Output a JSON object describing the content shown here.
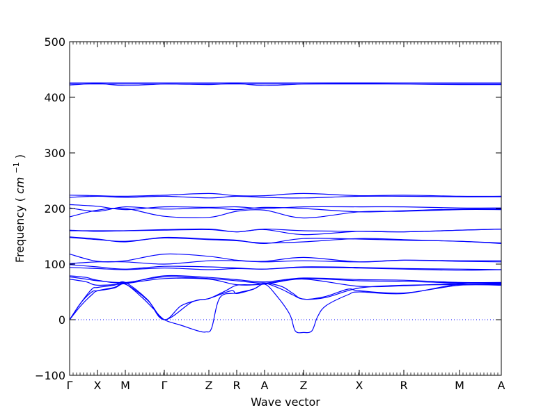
{
  "chart_data": {
    "type": "line",
    "title": "",
    "xlabel": "Wave vector",
    "ylabel": "Frequency",
    "ylabel_unit": "cm",
    "ylabel_unit_exp": "−1",
    "ylim": [
      -100,
      500
    ],
    "y_ticks": [
      -100,
      0,
      100,
      200,
      300,
      400,
      500
    ],
    "x_ticks": [
      {
        "label": "Γ",
        "x": 0
      },
      {
        "label": "X",
        "x": 0.5
      },
      {
        "label": "M",
        "x": 1.0
      },
      {
        "label": "Γ",
        "x": 1.7
      },
      {
        "label": "Z",
        "x": 2.5
      },
      {
        "label": "R",
        "x": 3.0
      },
      {
        "label": "A",
        "x": 3.5
      },
      {
        "label": "Z",
        "x": 4.2
      },
      {
        "label": "X",
        "x": 5.2
      },
      {
        "label": "R",
        "x": 6.0
      },
      {
        "label": "M",
        "x": 7.0
      },
      {
        "label": "A",
        "x": 7.75
      }
    ],
    "xlim": [
      0,
      7.75
    ],
    "zero_line": 0,
    "line_color": "#0000ff",
    "series": [
      {
        "x": [
          0,
          7.75
        ],
        "y": [
          426,
          426
        ]
      },
      {
        "x": [
          0,
          7.75
        ],
        "y": [
          424,
          424
        ]
      },
      {
        "x": [
          0,
          0.5,
          1.0,
          1.7,
          2.5,
          3.0,
          3.5,
          4.2,
          5.2,
          6.0,
          7.0,
          7.75
        ],
        "y": [
          422,
          425,
          421,
          424,
          423,
          425,
          421,
          424,
          425,
          424,
          423,
          423
        ]
      },
      {
        "x": [
          0,
          0.5,
          1.0,
          1.7,
          2.5,
          3.0,
          3.5,
          4.2,
          5.2,
          6.0,
          7.0,
          7.75
        ],
        "y": [
          224,
          223,
          222,
          224,
          227,
          223,
          223,
          227,
          223,
          224,
          222,
          222
        ]
      },
      {
        "x": [
          0,
          0.5,
          1.0,
          1.7,
          2.5,
          3.0,
          3.5,
          4.2,
          5.2,
          6.0,
          7.0,
          7.75
        ],
        "y": [
          220,
          222,
          220,
          222,
          219,
          222,
          220,
          219,
          222,
          222,
          221,
          221
        ]
      },
      {
        "x": [
          0,
          0.5,
          1.0,
          1.7,
          2.5,
          3.0,
          3.5,
          4.2,
          5.2,
          6.0,
          7.0,
          7.75
        ],
        "y": [
          207,
          204,
          198,
          203,
          202,
          203,
          200,
          203,
          203,
          203,
          201,
          201
        ]
      },
      {
        "x": [
          0,
          0.5,
          1.0,
          1.7,
          2.5,
          3.0,
          3.5,
          4.2,
          5.2,
          6.0,
          7.0,
          7.75
        ],
        "y": [
          201,
          195,
          203,
          199,
          201,
          198,
          202,
          200,
          194,
          196,
          199,
          199
        ]
      },
      {
        "x": [
          0,
          0.5,
          1.0,
          1.7,
          2.5,
          3.0,
          3.5,
          4.2,
          5.2,
          6.0,
          7.0,
          7.75
        ],
        "y": [
          185,
          197,
          200,
          186,
          184,
          195,
          197,
          183,
          194,
          195,
          198,
          198
        ]
      },
      {
        "x": [
          0,
          0.5,
          1.0,
          1.7,
          2.5,
          3.0,
          3.5,
          4.2,
          5.2,
          6.0,
          7.0,
          7.75
        ],
        "y": [
          161,
          159,
          160,
          162,
          163,
          158,
          163,
          160,
          159,
          158,
          161,
          163
        ]
      },
      {
        "x": [
          0,
          0.5,
          1.0,
          1.7,
          2.5,
          3.0,
          3.5,
          4.2,
          5.2,
          6.0,
          7.0,
          7.75
        ],
        "y": [
          160,
          160,
          160,
          161,
          162,
          158,
          162,
          153,
          159,
          158,
          161,
          163
        ]
      },
      {
        "x": [
          0,
          0.5,
          1.0,
          1.7,
          2.5,
          3.0,
          3.5,
          4.2,
          5.2,
          6.0,
          7.0,
          7.75
        ],
        "y": [
          149,
          145,
          140,
          148,
          145,
          143,
          137,
          146,
          145,
          143,
          141,
          137
        ]
      },
      {
        "x": [
          0,
          0.5,
          1.0,
          1.7,
          2.5,
          3.0,
          3.5,
          4.2,
          5.2,
          6.0,
          7.0,
          7.75
        ],
        "y": [
          148,
          144,
          141,
          147,
          144,
          142,
          138,
          140,
          146,
          144,
          141,
          138
        ]
      },
      {
        "x": [
          0,
          0.5,
          1.0,
          1.7,
          2.5,
          3.0,
          3.5,
          4.2,
          5.2,
          6.0,
          7.0,
          7.75
        ],
        "y": [
          118,
          105,
          106,
          118,
          114,
          107,
          105,
          112,
          104,
          107,
          106,
          106
        ]
      },
      {
        "x": [
          0,
          0.5,
          1.0,
          1.7,
          2.5,
          3.0,
          3.5,
          4.2,
          5.2,
          6.0,
          7.0,
          7.75
        ],
        "y": [
          101,
          104,
          104,
          100,
          106,
          106,
          104,
          106,
          104,
          107,
          105,
          104
        ]
      },
      {
        "x": [
          0,
          0.5,
          1.0,
          1.7,
          2.5,
          3.0,
          3.5,
          4.2,
          5.2,
          6.0,
          7.0,
          7.75
        ],
        "y": [
          99,
          95,
          91,
          96,
          95,
          93,
          91,
          95,
          94,
          92,
          91,
          90
        ]
      },
      {
        "x": [
          0,
          0.5,
          1.0,
          1.7,
          2.5,
          3.0,
          3.5,
          4.2,
          5.2,
          6.0,
          7.0,
          7.75
        ],
        "y": [
          94,
          92,
          90,
          93,
          90,
          92,
          91,
          94,
          93,
          91,
          89,
          90
        ]
      },
      {
        "x": [
          0,
          0.3,
          0.5,
          1.0,
          1.7,
          2.5,
          3.0,
          3.5,
          4.2,
          5.2,
          6.0,
          7.0,
          7.75
        ],
        "y": [
          79,
          76,
          71,
          66,
          79,
          76,
          72,
          68,
          75,
          72,
          71,
          67,
          67
        ]
      },
      {
        "x": [
          0,
          0.3,
          0.5,
          1.0,
          1.7,
          2.5,
          3.0,
          3.5,
          4.2,
          5.2,
          6.0,
          7.0,
          7.75
        ],
        "y": [
          77,
          73,
          70,
          67,
          77,
          74,
          70,
          66,
          74,
          70,
          69,
          66,
          66
        ]
      },
      {
        "x": [
          0,
          0.3,
          0.5,
          1.0,
          1.7,
          2.5,
          3.0,
          3.5,
          4.2,
          5.2,
          6.0,
          7.0,
          7.75
        ],
        "y": [
          73,
          68,
          62,
          65,
          74,
          73,
          63,
          64,
          73,
          60,
          61,
          65,
          64
        ]
      },
      {
        "x": [
          0,
          0.2,
          0.4,
          0.5,
          0.8,
          1.0,
          1.4,
          1.7,
          2.2,
          2.5,
          2.8,
          3.0,
          3.3,
          3.5,
          3.8,
          4.0,
          4.2,
          4.6,
          5.2,
          6.0,
          7.0,
          7.75
        ],
        "y": [
          0,
          30,
          55,
          58,
          62,
          67,
          36,
          0,
          32,
          38,
          52,
          62,
          63,
          66,
          55,
          45,
          37,
          40,
          57,
          62,
          63,
          63
        ]
      },
      {
        "x": [
          0,
          0.2,
          0.4,
          0.5,
          0.8,
          1.0,
          1.4,
          1.7,
          2.0,
          2.3,
          2.5,
          2.9,
          3.0,
          3.3,
          3.5,
          3.8,
          4.0,
          4.2,
          4.6,
          5.0,
          5.2,
          6.0,
          7.0,
          7.75
        ],
        "y": [
          0,
          25,
          45,
          52,
          58,
          64,
          35,
          0,
          25,
          35,
          38,
          52,
          47,
          55,
          65,
          60,
          48,
          37,
          42,
          55,
          52,
          48,
          62,
          62
        ]
      },
      {
        "x": [
          0,
          0.2,
          0.4,
          0.5,
          0.8,
          1.0,
          1.3,
          1.5,
          1.7,
          2.0,
          2.3,
          2.45,
          2.55,
          2.7,
          3.0,
          3.3,
          3.5,
          3.7,
          3.95,
          4.05,
          4.2,
          4.35,
          4.45,
          4.6,
          5.0,
          5.2,
          6.0,
          7.0,
          7.75
        ],
        "y": [
          0,
          30,
          50,
          52,
          57,
          64,
          40,
          20,
          0,
          -10,
          -20,
          -22,
          -15,
          40,
          48,
          55,
          64,
          45,
          10,
          -20,
          -23,
          -20,
          5,
          25,
          45,
          50,
          47,
          64,
          65
        ]
      }
    ]
  }
}
